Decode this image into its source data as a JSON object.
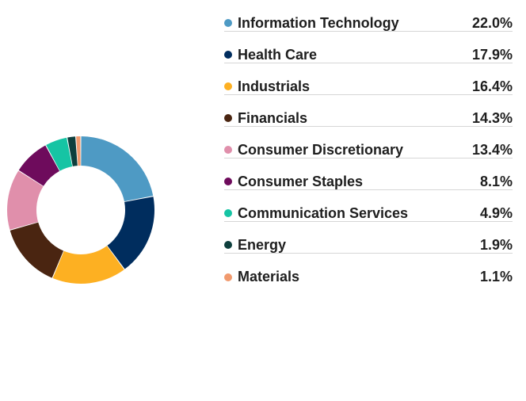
{
  "chart_data": {
    "type": "pie",
    "variant": "donut",
    "categories": [
      "Information Technology",
      "Health Care",
      "Industrials",
      "Financials",
      "Consumer Discretionary",
      "Consumer Staples",
      "Communication Services",
      "Energy",
      "Materials"
    ],
    "values": [
      22.0,
      17.9,
      16.4,
      14.3,
      13.4,
      8.1,
      4.9,
      1.9,
      1.1
    ],
    "labels": [
      "22.0%",
      "17.9%",
      "16.4%",
      "14.3%",
      "13.4%",
      "8.1%",
      "4.9%",
      "1.9%",
      "1.1%"
    ],
    "colors": [
      "#4e9ac4",
      "#002d5e",
      "#fdb022",
      "#4a2511",
      "#e08fab",
      "#6e0b5c",
      "#16c4a4",
      "#0e3f3d",
      "#f19a6e"
    ],
    "title": "",
    "legend": "right"
  }
}
